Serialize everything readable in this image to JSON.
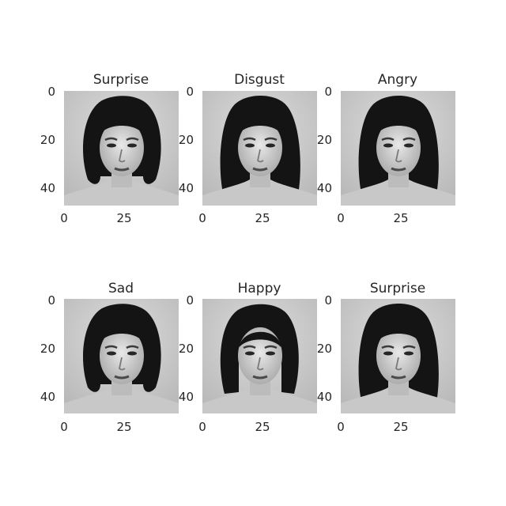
{
  "panels": [
    {
      "title": "Surprise",
      "yticks": [
        "0",
        "20",
        "40"
      ],
      "xticks": [
        "0",
        "25"
      ],
      "hair": "bob-curl"
    },
    {
      "title": "Disgust",
      "yticks": [
        "0",
        "20",
        "40"
      ],
      "xticks": [
        "0",
        "25"
      ],
      "hair": "long-straight"
    },
    {
      "title": "Angry",
      "yticks": [
        "0",
        "20",
        "40"
      ],
      "xticks": [
        "0",
        "25"
      ],
      "hair": "long-straight"
    },
    {
      "title": "Sad",
      "yticks": [
        "0",
        "20",
        "40"
      ],
      "xticks": [
        "0",
        "25"
      ],
      "hair": "bob-curl"
    },
    {
      "title": "Happy",
      "yticks": [
        "0",
        "20",
        "40"
      ],
      "xticks": [
        "0",
        "25"
      ],
      "hair": "bangs"
    },
    {
      "title": "Surprise",
      "yticks": [
        "0",
        "20",
        "40"
      ],
      "xticks": [
        "0",
        "25"
      ],
      "hair": "long-straight"
    }
  ],
  "colors": {
    "background": "#d2d2d2",
    "hair": "#141414",
    "skin": "#dedede",
    "text": "#262626"
  }
}
